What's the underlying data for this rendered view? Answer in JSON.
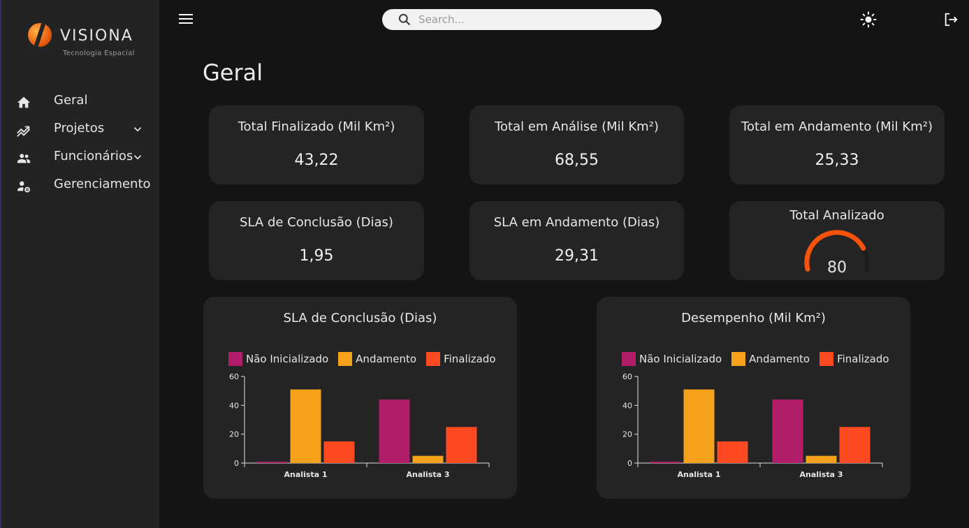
{
  "brand": {
    "name": "VISIONA",
    "subtitle": "Tecnologia Espacial"
  },
  "sidebar": {
    "items": [
      {
        "label": "Geral",
        "icon": "home-icon",
        "expandable": false
      },
      {
        "label": "Projetos",
        "icon": "trending-icon",
        "expandable": true
      },
      {
        "label": "Funcionários",
        "icon": "people-icon",
        "expandable": true
      },
      {
        "label": "Gerenciamento",
        "icon": "user-settings-icon",
        "expandable": false
      }
    ]
  },
  "header": {
    "search_placeholder": "Search...",
    "search_value": ""
  },
  "page": {
    "title": "Geral"
  },
  "kpis": [
    {
      "title": "Total Finalizado (Mil Km²)",
      "value": "43,22"
    },
    {
      "title": "Total em Análise (Mil Km²)",
      "value": "68,55"
    },
    {
      "title": "Total em Andamento (Mil Km²)",
      "value": "25,33"
    },
    {
      "title": "SLA de Conclusão (Dias)",
      "value": "1,95"
    },
    {
      "title": "SLA em Andamento (Dias)",
      "value": "29,31"
    }
  ],
  "gauge": {
    "title": "Total Analizado",
    "value": "80",
    "fraction": 0.8
  },
  "colors": {
    "nao_inicializado": "#b01e6a",
    "andamento": "#f5a11c",
    "finalizado": "#fd4a22",
    "gauge": "#f5520c"
  },
  "chart_data": [
    {
      "type": "bar",
      "title": "SLA de Conclusão (Dias)",
      "categories": [
        "Analista 1",
        "Analista 3"
      ],
      "series": [
        {
          "name": "Não Inicializado",
          "values": [
            1,
            44
          ]
        },
        {
          "name": "Andamento",
          "values": [
            51,
            5
          ]
        },
        {
          "name": "Finalizado",
          "values": [
            15,
            25
          ]
        }
      ],
      "ylim": [
        0,
        60
      ],
      "yticks": [
        0,
        20,
        40,
        60
      ],
      "xlabel": "",
      "ylabel": ""
    },
    {
      "type": "bar",
      "title": "Desempenho (Mil Km²)",
      "categories": [
        "Analista 1",
        "Analista 3"
      ],
      "series": [
        {
          "name": "Não Inicializado",
          "values": [
            1,
            44
          ]
        },
        {
          "name": "Andamento",
          "values": [
            51,
            5
          ]
        },
        {
          "name": "Finalizado",
          "values": [
            15,
            25
          ]
        }
      ],
      "ylim": [
        0,
        60
      ],
      "yticks": [
        0,
        20,
        40,
        60
      ],
      "xlabel": "",
      "ylabel": ""
    }
  ]
}
